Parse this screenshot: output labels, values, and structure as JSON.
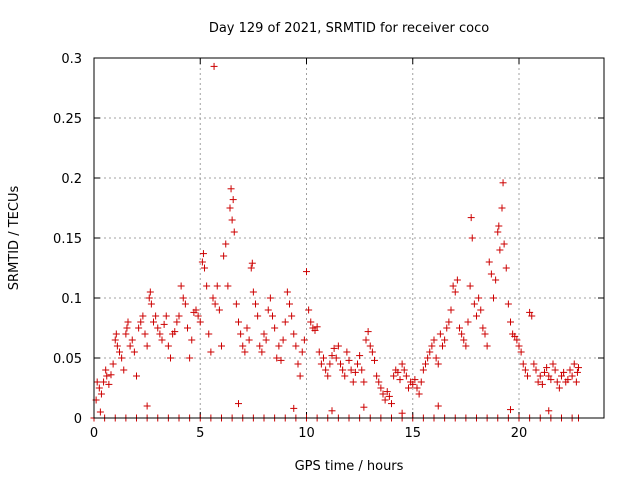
{
  "chart_data": {
    "type": "scatter",
    "title": "Day 129 of 2021, SRMTID for receiver coco",
    "xlabel": "GPS time / hours",
    "ylabel": "SRMTID / TECUs",
    "xlim": [
      0,
      24
    ],
    "ylim": [
      0,
      0.3
    ],
    "x_ticks": [
      0,
      5,
      10,
      15,
      20
    ],
    "x_tick_labels": [
      "0",
      "5",
      "10",
      "15",
      "20"
    ],
    "y_ticks": [
      0,
      0.05,
      0.1,
      0.15,
      0.2,
      0.25,
      0.3
    ],
    "y_tick_labels": [
      "0",
      "0.05",
      "0.1",
      "0.15",
      "0.2",
      "0.25",
      "0.3"
    ],
    "grid": true,
    "marker": "plus",
    "marker_color": "#cc0000",
    "series": [
      {
        "name": "SRMTID",
        "points": [
          [
            0.1,
            0.015
          ],
          [
            0.15,
            0.03
          ],
          [
            0.25,
            0.025
          ],
          [
            0.35,
            0.02
          ],
          [
            0.45,
            0.03
          ],
          [
            0.55,
            0.04
          ],
          [
            0.6,
            0.035
          ],
          [
            0.7,
            0.028
          ],
          [
            0.8,
            0.036
          ],
          [
            0.9,
            0.045
          ],
          [
            1.0,
            0.065
          ],
          [
            1.05,
            0.07
          ],
          [
            1.1,
            0.06
          ],
          [
            1.2,
            0.055
          ],
          [
            1.3,
            0.05
          ],
          [
            1.4,
            0.04
          ],
          [
            1.5,
            0.07
          ],
          [
            1.55,
            0.075
          ],
          [
            1.6,
            0.08
          ],
          [
            1.7,
            0.06
          ],
          [
            1.8,
            0.065
          ],
          [
            1.9,
            0.055
          ],
          [
            2.0,
            0.035
          ],
          [
            2.1,
            0.075
          ],
          [
            2.2,
            0.08
          ],
          [
            2.3,
            0.085
          ],
          [
            2.4,
            0.07
          ],
          [
            2.5,
            0.06
          ],
          [
            2.6,
            0.1
          ],
          [
            2.65,
            0.105
          ],
          [
            2.7,
            0.095
          ],
          [
            2.8,
            0.08
          ],
          [
            2.9,
            0.085
          ],
          [
            3.0,
            0.075
          ],
          [
            3.1,
            0.07
          ],
          [
            3.2,
            0.065
          ],
          [
            3.3,
            0.078
          ],
          [
            3.4,
            0.085
          ],
          [
            3.5,
            0.06
          ],
          [
            3.6,
            0.05
          ],
          [
            3.7,
            0.07
          ],
          [
            3.8,
            0.072
          ],
          [
            3.9,
            0.08
          ],
          [
            4.0,
            0.085
          ],
          [
            4.1,
            0.11
          ],
          [
            4.2,
            0.1
          ],
          [
            4.3,
            0.095
          ],
          [
            4.4,
            0.075
          ],
          [
            4.5,
            0.05
          ],
          [
            4.6,
            0.065
          ],
          [
            4.7,
            0.088
          ],
          [
            4.8,
            0.09
          ],
          [
            4.9,
            0.085
          ],
          [
            5.0,
            0.08
          ],
          [
            5.1,
            0.13
          ],
          [
            5.15,
            0.137
          ],
          [
            5.2,
            0.125
          ],
          [
            5.3,
            0.11
          ],
          [
            5.4,
            0.07
          ],
          [
            5.5,
            0.055
          ],
          [
            5.6,
            0.1
          ],
          [
            5.65,
            0.293
          ],
          [
            5.7,
            0.095
          ],
          [
            5.8,
            0.11
          ],
          [
            5.9,
            0.09
          ],
          [
            6.0,
            0.06
          ],
          [
            6.1,
            0.135
          ],
          [
            6.2,
            0.145
          ],
          [
            6.3,
            0.11
          ],
          [
            6.4,
            0.175
          ],
          [
            6.45,
            0.191
          ],
          [
            6.5,
            0.165
          ],
          [
            6.55,
            0.182
          ],
          [
            6.6,
            0.155
          ],
          [
            6.7,
            0.095
          ],
          [
            6.8,
            0.08
          ],
          [
            6.9,
            0.07
          ],
          [
            7.0,
            0.06
          ],
          [
            7.1,
            0.055
          ],
          [
            7.2,
            0.075
          ],
          [
            7.3,
            0.065
          ],
          [
            7.4,
            0.125
          ],
          [
            7.45,
            0.129
          ],
          [
            7.5,
            0.105
          ],
          [
            7.6,
            0.095
          ],
          [
            7.7,
            0.085
          ],
          [
            7.8,
            0.06
          ],
          [
            7.9,
            0.055
          ],
          [
            8.0,
            0.07
          ],
          [
            8.1,
            0.065
          ],
          [
            8.2,
            0.09
          ],
          [
            8.3,
            0.1
          ],
          [
            8.4,
            0.085
          ],
          [
            8.5,
            0.075
          ],
          [
            8.6,
            0.05
          ],
          [
            8.7,
            0.06
          ],
          [
            8.8,
            0.048
          ],
          [
            8.9,
            0.065
          ],
          [
            9.0,
            0.08
          ],
          [
            9.1,
            0.105
          ],
          [
            9.2,
            0.095
          ],
          [
            9.3,
            0.085
          ],
          [
            9.4,
            0.07
          ],
          [
            9.5,
            0.06
          ],
          [
            9.6,
            0.045
          ],
          [
            9.7,
            0.035
          ],
          [
            9.8,
            0.055
          ],
          [
            9.9,
            0.065
          ],
          [
            10.0,
            0.122
          ],
          [
            10.1,
            0.09
          ],
          [
            10.2,
            0.08
          ],
          [
            10.3,
            0.075
          ],
          [
            10.4,
            0.073
          ],
          [
            10.5,
            0.076
          ],
          [
            10.6,
            0.055
          ],
          [
            10.7,
            0.045
          ],
          [
            10.8,
            0.05
          ],
          [
            10.9,
            0.04
          ],
          [
            11.0,
            0.035
          ],
          [
            11.1,
            0.045
          ],
          [
            11.2,
            0.052
          ],
          [
            11.3,
            0.058
          ],
          [
            11.4,
            0.05
          ],
          [
            11.5,
            0.06
          ],
          [
            11.6,
            0.045
          ],
          [
            11.7,
            0.04
          ],
          [
            11.8,
            0.035
          ],
          [
            11.9,
            0.055
          ],
          [
            12.0,
            0.048
          ],
          [
            12.1,
            0.04
          ],
          [
            12.2,
            0.03
          ],
          [
            12.3,
            0.038
          ],
          [
            12.4,
            0.045
          ],
          [
            12.5,
            0.052
          ],
          [
            12.6,
            0.04
          ],
          [
            12.7,
            0.03
          ],
          [
            12.8,
            0.065
          ],
          [
            12.9,
            0.072
          ],
          [
            13.0,
            0.06
          ],
          [
            13.1,
            0.055
          ],
          [
            13.2,
            0.048
          ],
          [
            13.3,
            0.035
          ],
          [
            13.4,
            0.03
          ],
          [
            13.5,
            0.025
          ],
          [
            13.6,
            0.02
          ],
          [
            13.7,
            0.015
          ],
          [
            13.8,
            0.022
          ],
          [
            13.9,
            0.018
          ],
          [
            14.0,
            0.012
          ],
          [
            14.1,
            0.035
          ],
          [
            14.2,
            0.04
          ],
          [
            14.3,
            0.038
          ],
          [
            14.4,
            0.032
          ],
          [
            14.5,
            0.045
          ],
          [
            14.6,
            0.04
          ],
          [
            14.7,
            0.035
          ],
          [
            14.8,
            0.025
          ],
          [
            14.9,
            0.03
          ],
          [
            15.0,
            0.028
          ],
          [
            15.1,
            0.032
          ],
          [
            15.2,
            0.025
          ],
          [
            15.3,
            0.02
          ],
          [
            15.4,
            0.03
          ],
          [
            15.5,
            0.04
          ],
          [
            15.6,
            0.045
          ],
          [
            15.7,
            0.05
          ],
          [
            15.8,
            0.055
          ],
          [
            15.9,
            0.06
          ],
          [
            16.0,
            0.065
          ],
          [
            16.1,
            0.05
          ],
          [
            16.2,
            0.045
          ],
          [
            16.3,
            0.07
          ],
          [
            16.4,
            0.06
          ],
          [
            16.5,
            0.065
          ],
          [
            16.6,
            0.075
          ],
          [
            16.7,
            0.08
          ],
          [
            16.8,
            0.09
          ],
          [
            16.9,
            0.11
          ],
          [
            17.0,
            0.105
          ],
          [
            17.1,
            0.115
          ],
          [
            17.2,
            0.075
          ],
          [
            17.3,
            0.07
          ],
          [
            17.4,
            0.065
          ],
          [
            17.5,
            0.06
          ],
          [
            17.6,
            0.08
          ],
          [
            17.7,
            0.11
          ],
          [
            17.75,
            0.167
          ],
          [
            17.8,
            0.15
          ],
          [
            17.9,
            0.095
          ],
          [
            18.0,
            0.085
          ],
          [
            18.1,
            0.1
          ],
          [
            18.2,
            0.09
          ],
          [
            18.3,
            0.075
          ],
          [
            18.4,
            0.07
          ],
          [
            18.5,
            0.06
          ],
          [
            18.6,
            0.13
          ],
          [
            18.7,
            0.12
          ],
          [
            18.8,
            0.1
          ],
          [
            18.9,
            0.115
          ],
          [
            19.0,
            0.155
          ],
          [
            19.05,
            0.16
          ],
          [
            19.1,
            0.14
          ],
          [
            19.2,
            0.175
          ],
          [
            19.25,
            0.196
          ],
          [
            19.3,
            0.145
          ],
          [
            19.4,
            0.125
          ],
          [
            19.5,
            0.095
          ],
          [
            19.6,
            0.08
          ],
          [
            19.7,
            0.07
          ],
          [
            19.8,
            0.068
          ],
          [
            19.9,
            0.065
          ],
          [
            20.0,
            0.06
          ],
          [
            20.1,
            0.055
          ],
          [
            20.2,
            0.045
          ],
          [
            20.3,
            0.04
          ],
          [
            20.4,
            0.035
          ],
          [
            20.5,
            0.088
          ],
          [
            20.6,
            0.085
          ],
          [
            20.7,
            0.045
          ],
          [
            20.8,
            0.04
          ],
          [
            20.9,
            0.03
          ],
          [
            21.0,
            0.035
          ],
          [
            21.1,
            0.028
          ],
          [
            21.2,
            0.038
          ],
          [
            21.3,
            0.042
          ],
          [
            21.4,
            0.035
          ],
          [
            21.5,
            0.032
          ],
          [
            21.6,
            0.045
          ],
          [
            21.7,
            0.04
          ],
          [
            21.8,
            0.03
          ],
          [
            21.9,
            0.025
          ],
          [
            22.0,
            0.035
          ],
          [
            22.1,
            0.038
          ],
          [
            22.2,
            0.03
          ],
          [
            22.3,
            0.032
          ],
          [
            22.4,
            0.04
          ],
          [
            22.5,
            0.035
          ],
          [
            22.6,
            0.045
          ],
          [
            22.7,
            0.03
          ],
          [
            22.75,
            0.038
          ],
          [
            22.8,
            0.042
          ],
          [
            0.3,
            0.005
          ],
          [
            2.5,
            0.01
          ],
          [
            6.8,
            0.012
          ],
          [
            9.4,
            0.008
          ],
          [
            11.2,
            0.006
          ],
          [
            12.7,
            0.009
          ],
          [
            14.5,
            0.004
          ],
          [
            16.2,
            0.01
          ],
          [
            19.6,
            0.007
          ],
          [
            21.4,
            0.006
          ],
          [
            0.0,
            0.0
          ],
          [
            0.5,
            0.0
          ],
          [
            1.0,
            0.0
          ],
          [
            1.5,
            0.0
          ],
          [
            2.0,
            0.0
          ],
          [
            2.5,
            0.0
          ],
          [
            3.0,
            0.0
          ],
          [
            3.5,
            0.0
          ],
          [
            4.0,
            0.0
          ],
          [
            4.5,
            0.0
          ],
          [
            5.0,
            0.0
          ],
          [
            5.5,
            0.0
          ],
          [
            6.0,
            0.0
          ],
          [
            6.5,
            0.0
          ],
          [
            7.0,
            0.0
          ],
          [
            7.5,
            0.0
          ],
          [
            8.0,
            0.0
          ],
          [
            8.5,
            0.0
          ],
          [
            9.0,
            0.0
          ],
          [
            9.5,
            0.0
          ],
          [
            10.0,
            0.0
          ],
          [
            10.5,
            0.0
          ],
          [
            11.0,
            0.0
          ],
          [
            11.5,
            0.0
          ],
          [
            12.0,
            0.0
          ],
          [
            12.5,
            0.0
          ],
          [
            13.0,
            0.0
          ],
          [
            13.5,
            0.0
          ],
          [
            14.0,
            0.0
          ],
          [
            14.5,
            0.0
          ],
          [
            15.0,
            0.0
          ],
          [
            15.5,
            0.0
          ],
          [
            16.0,
            0.0
          ],
          [
            16.5,
            0.0
          ],
          [
            17.0,
            0.0
          ],
          [
            17.5,
            0.0
          ],
          [
            18.0,
            0.0
          ],
          [
            18.5,
            0.0
          ],
          [
            19.0,
            0.0
          ],
          [
            19.5,
            0.0
          ],
          [
            20.0,
            0.0
          ],
          [
            20.5,
            0.0
          ],
          [
            21.0,
            0.0
          ],
          [
            21.5,
            0.0
          ],
          [
            22.0,
            0.0
          ],
          [
            22.5,
            0.0
          ],
          [
            22.8,
            0.0
          ]
        ]
      }
    ]
  }
}
